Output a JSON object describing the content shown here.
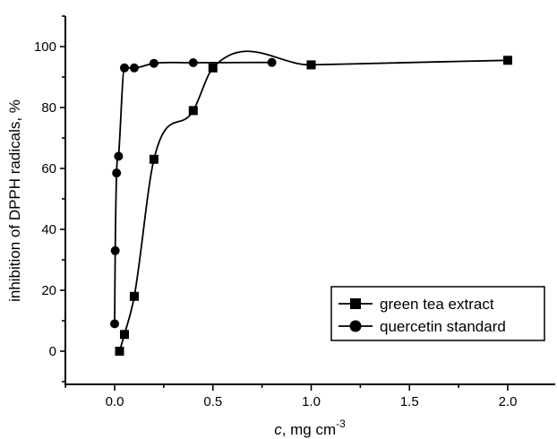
{
  "chart_data": {
    "type": "scatter",
    "xlabel_italic": "c",
    "xlabel_rest": ", mg cm",
    "xlabel_sup": "-3",
    "ylabel": "inhibition of DPPH radicals, %",
    "xlim": [
      -0.25,
      2.25
    ],
    "ylim": [
      -10,
      110
    ],
    "xticks": [
      0.0,
      0.5,
      1.0,
      1.5,
      2.0
    ],
    "xtick_labels": [
      "0.0",
      "0.5",
      "1.0",
      "1.5",
      "2.0"
    ],
    "yticks": [
      0,
      20,
      40,
      60,
      80,
      100
    ],
    "ytick_labels": [
      "0",
      "20",
      "40",
      "60",
      "80",
      "100"
    ],
    "legend_position": "bottom-right",
    "series": [
      {
        "name": "green tea extract",
        "marker": "square",
        "x": [
          0.025,
          0.05,
          0.1,
          0.2,
          0.4,
          0.5,
          1.0,
          2.0
        ],
        "y": [
          0,
          5.5,
          18,
          63,
          79,
          93,
          94,
          95.5
        ]
      },
      {
        "name": "quercetin standard",
        "marker": "circle",
        "x": [
          0.0,
          0.003,
          0.01,
          0.02,
          0.05,
          0.1,
          0.2,
          0.4,
          0.8
        ],
        "y": [
          9,
          33,
          58.5,
          64,
          93,
          93,
          94.5,
          94.7,
          94.8
        ]
      }
    ]
  }
}
